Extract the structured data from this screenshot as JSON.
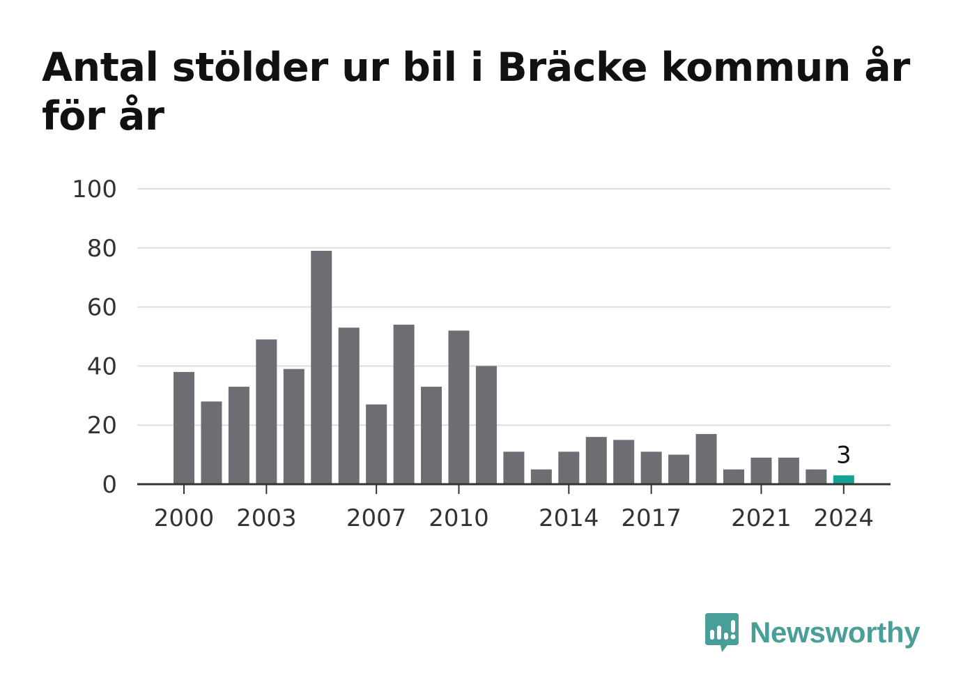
{
  "title": "Antal stölder ur bil i Bräcke kommun år för år",
  "brand": {
    "name": "Newsworthy",
    "icon": "newsworthy-logo-icon",
    "color": "#4a9e98"
  },
  "colors": {
    "bar": "#6e6d73",
    "highlight": "#14a393",
    "grid": "#dddddd",
    "axis": "#333333"
  },
  "chart_data": {
    "type": "bar",
    "categories": [
      "2000",
      "2001",
      "2002",
      "2003",
      "2004",
      "2005",
      "2006",
      "2007",
      "2008",
      "2009",
      "2010",
      "2011",
      "2012",
      "2013",
      "2014",
      "2015",
      "2016",
      "2017",
      "2018",
      "2019",
      "2020",
      "2021",
      "2022",
      "2023",
      "2024"
    ],
    "values": [
      38,
      28,
      33,
      49,
      39,
      79,
      53,
      27,
      54,
      33,
      52,
      40,
      11,
      5,
      11,
      16,
      15,
      11,
      10,
      17,
      5,
      9,
      9,
      5,
      3
    ],
    "highlight_index": 24,
    "data_labels": [
      {
        "index": 24,
        "text": "3"
      }
    ],
    "xtick_labels": [
      "2000",
      "2003",
      "2007",
      "2010",
      "2014",
      "2017",
      "2021",
      "2024"
    ],
    "ytick_labels": [
      "0",
      "20",
      "40",
      "60",
      "80",
      "100"
    ],
    "ylim": [
      0,
      100
    ],
    "grid": true,
    "xlabel": "",
    "ylabel": ""
  }
}
